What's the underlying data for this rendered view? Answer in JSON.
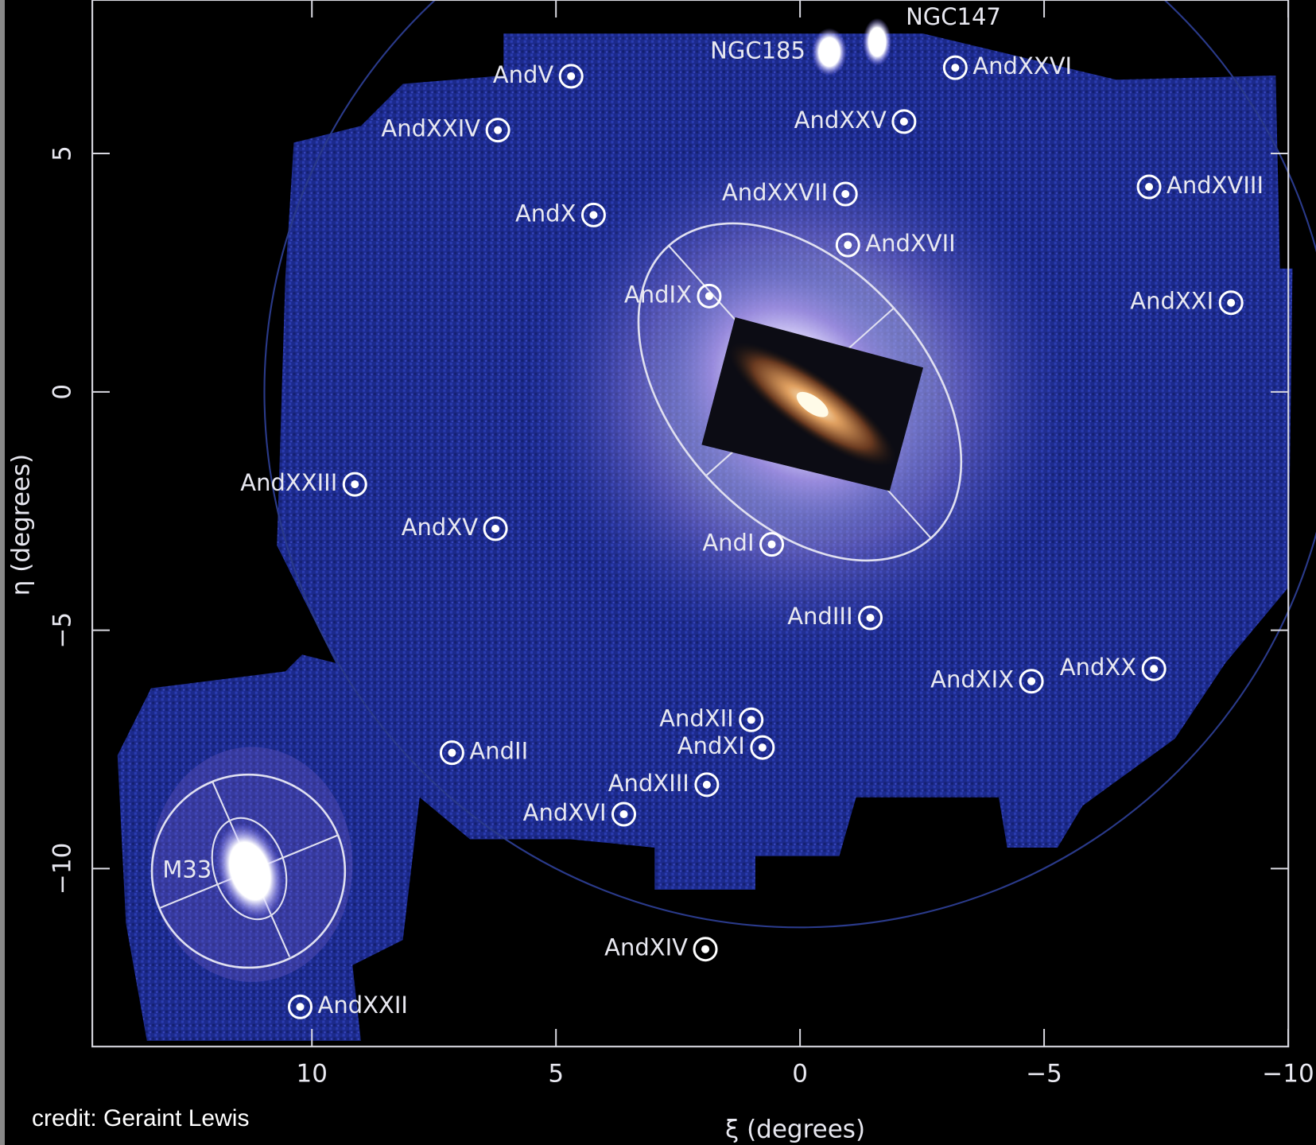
{
  "chart_data": {
    "type": "scatter",
    "xlabel": "ξ (degrees)",
    "ylabel": "η (degrees)",
    "credit": "credit: Geraint Lewis",
    "labels": [
      "AndV",
      "AndXXIV",
      "AndX",
      "NGC185",
      "NGC147",
      "AndXXVI",
      "AndXXV",
      "AndXXVII",
      "AndXVIII",
      "AndXVII",
      "AndIX",
      "AndXXI",
      "AndXXIII",
      "AndXV",
      "AndI",
      "AndIII",
      "AndXIX",
      "AndXX",
      "AndXII",
      "AndXI",
      "AndII",
      "AndXIII",
      "AndXVI",
      "M33",
      "AndXIV",
      "AndXXII"
    ],
    "x": [
      4.69,
      6.19,
      4.23,
      -0.6,
      -1.58,
      -3.18,
      -2.13,
      -0.93,
      -7.15,
      -0.98,
      1.86,
      -8.83,
      9.12,
      6.24,
      0.58,
      -1.44,
      -4.74,
      -7.25,
      1.0,
      0.77,
      7.13,
      1.91,
      3.61,
      11.27,
      1.94,
      10.24
    ],
    "y": [
      6.62,
      5.49,
      3.71,
      7.13,
      7.34,
      6.8,
      5.67,
      4.15,
      4.3,
      3.08,
      2.01,
      1.87,
      -1.94,
      -2.87,
      -3.2,
      -4.74,
      -6.07,
      -5.81,
      -6.88,
      -7.46,
      -7.57,
      -8.24,
      -8.86,
      -10.05,
      -11.69,
      -12.9
    ],
    "xlim": [
      14.5,
      -10
    ],
    "ylim": [
      -13.73,
      8.22
    ],
    "xticks": [
      10,
      5,
      0,
      {
        "value": -5,
        "label": "−5"
      },
      {
        "value": -10,
        "label": "−10"
      }
    ],
    "yticks": [
      5,
      0,
      {
        "value": -5,
        "label": "−5"
      },
      {
        "value": -10,
        "label": "−10"
      }
    ],
    "color": "#ffffff"
  }
}
